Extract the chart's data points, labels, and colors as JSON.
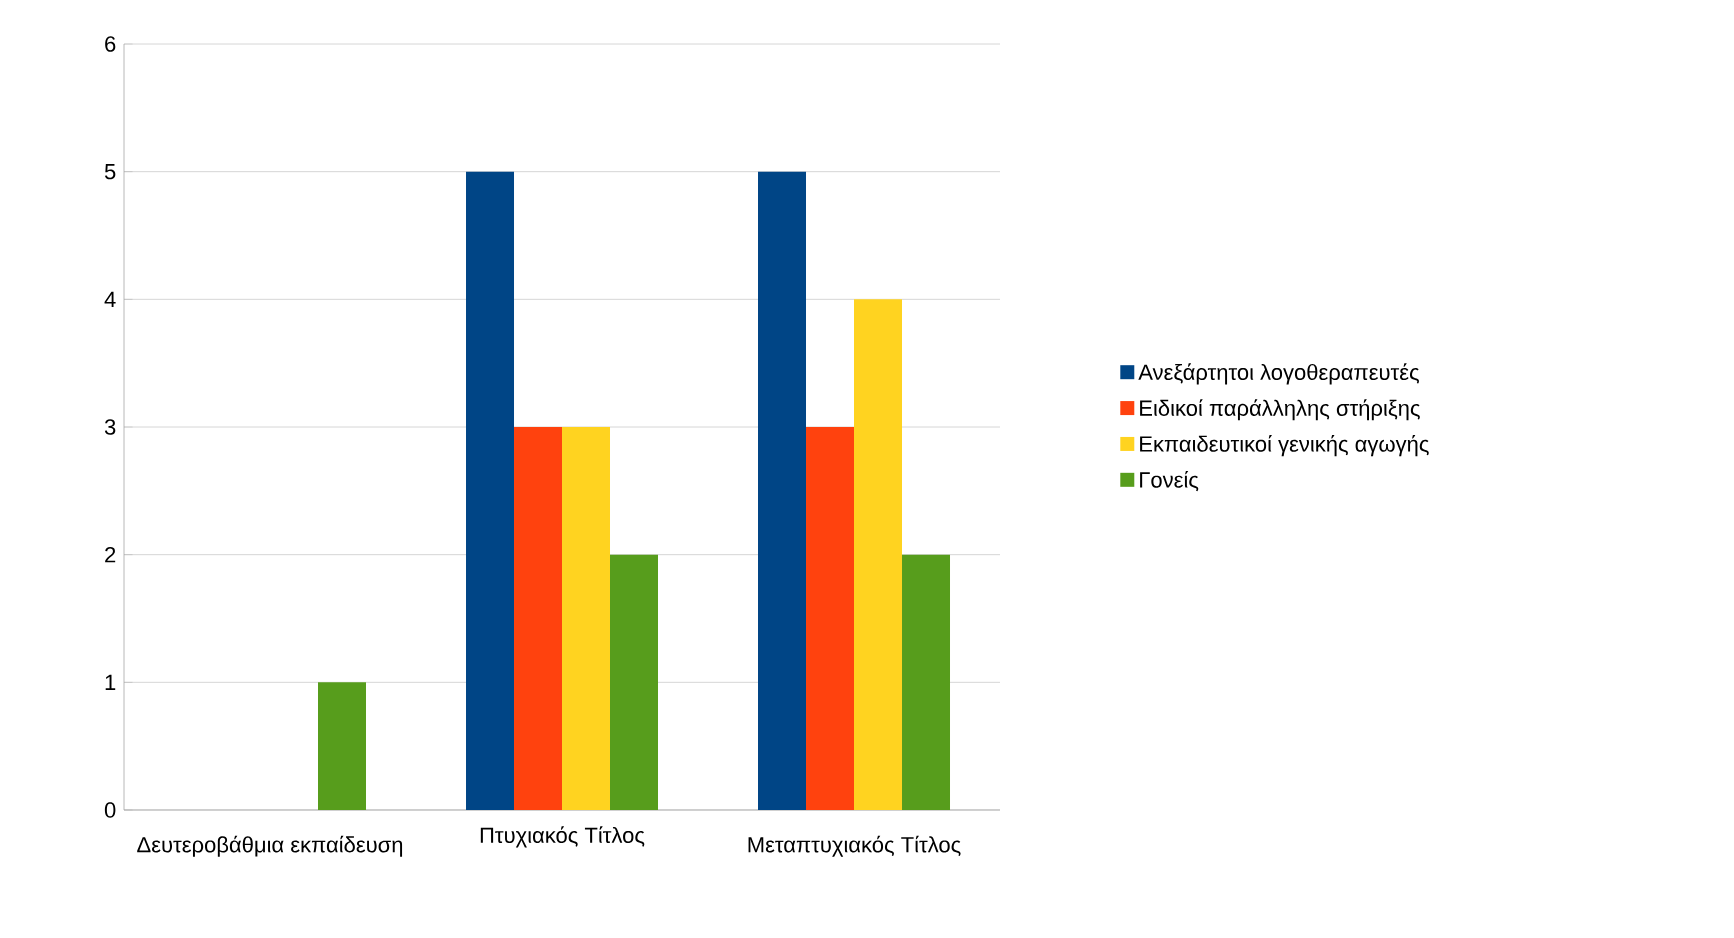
{
  "chart_data": {
    "type": "bar",
    "categories": [
      "Δευτεροβάθμια εκπαίδευση",
      "Πτυχιακός Τίτλος",
      "Μεταπτυχιακός Τίτλος"
    ],
    "series": [
      {
        "name": "Ανεξάρτητοι λογοθεραπευτές",
        "color": "#004586",
        "values": [
          0,
          5,
          5
        ]
      },
      {
        "name": "Ειδικοί παράλληλης στήριξης",
        "color": "#ff420e",
        "values": [
          0,
          3,
          3
        ]
      },
      {
        "name": "Εκπαιδευτικοί γενικής αγωγής",
        "color": "#ffd320",
        "values": [
          0,
          3,
          4
        ]
      },
      {
        "name": "Γονείς",
        "color": "#579d1c",
        "values": [
          1,
          2,
          2
        ]
      }
    ],
    "ylim": [
      0,
      6
    ],
    "yticks": [
      0,
      1,
      2,
      3,
      4,
      5,
      6
    ],
    "grid": "y",
    "legend": "right"
  }
}
